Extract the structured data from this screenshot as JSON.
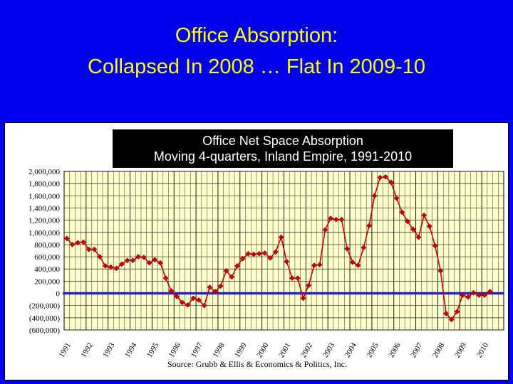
{
  "slide": {
    "title_line1": "Office Absorption:",
    "title_line2": "Collapsed In 2008 … Flat In 2009-10"
  },
  "chart_data": {
    "type": "line",
    "title": "Office Net Space Absorption",
    "subtitle": "Moving 4-quarters, Inland Empire, 1991-2010",
    "source": "Source:  Grubb & Ellis & Economics & Politics, Inc.",
    "x_tick_labels": [
      "1991",
      "1992",
      "1993",
      "1994",
      "1995",
      "1996",
      "1997",
      "1998",
      "1999",
      "2000",
      "2001",
      "2002",
      "2003",
      "2004",
      "2005",
      "2006",
      "2007",
      "2008",
      "2009",
      "2010"
    ],
    "y_tick_labels": [
      "2,000,000",
      "1,800,000",
      "1,600,000",
      "1,400,000",
      "1,200,000",
      "1,000,000",
      "800,000",
      "600,000",
      "400,000",
      "200,000",
      "0",
      "(200,000)",
      "(400,000)",
      "(600,000)"
    ],
    "ylim": [
      -600000,
      2000000
    ],
    "grid": true,
    "series": [
      {
        "color": "#cc0000",
        "marker": "diamond",
        "values": [
          900000,
          800000,
          830000,
          840000,
          720000,
          720000,
          600000,
          450000,
          430000,
          410000,
          480000,
          540000,
          540000,
          600000,
          590000,
          500000,
          550000,
          500000,
          250000,
          40000,
          -50000,
          -150000,
          -190000,
          -80000,
          -110000,
          -200000,
          100000,
          30000,
          120000,
          370000,
          270000,
          450000,
          570000,
          650000,
          640000,
          650000,
          660000,
          580000,
          680000,
          920000,
          520000,
          250000,
          250000,
          -80000,
          130000,
          460000,
          470000,
          1040000,
          1230000,
          1210000,
          1210000,
          730000,
          510000,
          460000,
          750000,
          1110000,
          1600000,
          1900000,
          1910000,
          1820000,
          1560000,
          1330000,
          1180000,
          1050000,
          920000,
          1280000,
          1100000,
          780000,
          370000,
          -330000,
          -430000,
          -300000,
          -30000,
          -60000,
          10000,
          -30000,
          -30000,
          30000
        ]
      }
    ],
    "zero_line_color": "#2222cc"
  }
}
